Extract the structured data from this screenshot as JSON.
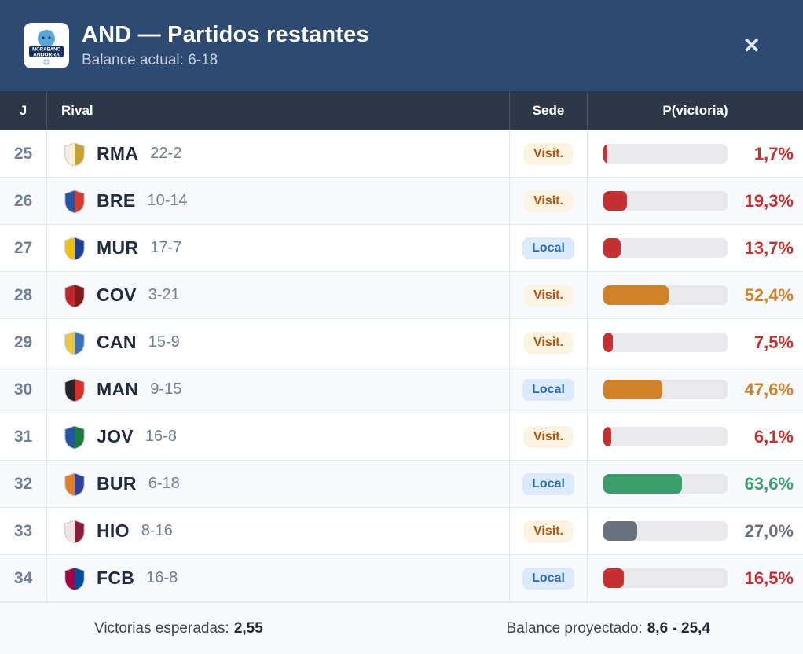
{
  "header": {
    "title": "AND — Partidos restantes",
    "subtitle": "Balance actual: 6-18",
    "close_glyph": "✕",
    "logo": {
      "name": "MoraBanc Andorra",
      "line1": "MORABANC",
      "line2": "ANDORRA"
    }
  },
  "table": {
    "columns": {
      "j": "J",
      "rival": "Rival",
      "sede": "Sede",
      "prob": "P(victoria)"
    },
    "rows": [
      {
        "j": "25",
        "abbr": "RMA",
        "record": "22-2",
        "sede": "Visit.",
        "sede_type": "visit",
        "pct": 1.7,
        "pct_label": "1,7%",
        "tone": "red",
        "logo": {
          "c1": "#f4efdd",
          "c2": "#c8a22e"
        }
      },
      {
        "j": "26",
        "abbr": "BRE",
        "record": "10-14",
        "sede": "Visit.",
        "sede_type": "visit",
        "pct": 19.3,
        "pct_label": "19,3%",
        "tone": "red",
        "logo": {
          "c1": "#2456a4",
          "c2": "#d63b2f"
        }
      },
      {
        "j": "27",
        "abbr": "MUR",
        "record": "17-7",
        "sede": "Local",
        "sede_type": "local",
        "pct": 13.7,
        "pct_label": "13,7%",
        "tone": "red",
        "logo": {
          "c1": "#f2bd05",
          "c2": "#1d3e90"
        }
      },
      {
        "j": "28",
        "abbr": "COV",
        "record": "3-21",
        "sede": "Visit.",
        "sede_type": "visit",
        "pct": 52.4,
        "pct_label": "52,4%",
        "tone": "orange",
        "logo": {
          "c1": "#c0272d",
          "c2": "#7e1a1a"
        }
      },
      {
        "j": "29",
        "abbr": "CAN",
        "record": "15-9",
        "sede": "Visit.",
        "sede_type": "visit",
        "pct": 7.5,
        "pct_label": "7,5%",
        "tone": "red",
        "logo": {
          "c1": "#e9c53f",
          "c2": "#3a72b5"
        }
      },
      {
        "j": "30",
        "abbr": "MAN",
        "record": "9-15",
        "sede": "Local",
        "sede_type": "local",
        "pct": 47.6,
        "pct_label": "47,6%",
        "tone": "orange",
        "logo": {
          "c1": "#25242f",
          "c2": "#d62f28"
        }
      },
      {
        "j": "31",
        "abbr": "JOV",
        "record": "16-8",
        "sede": "Visit.",
        "sede_type": "visit",
        "pct": 6.1,
        "pct_label": "6,1%",
        "tone": "red",
        "logo": {
          "c1": "#2456a4",
          "c2": "#1c7a3c"
        }
      },
      {
        "j": "32",
        "abbr": "BUR",
        "record": "6-18",
        "sede": "Local",
        "sede_type": "local",
        "pct": 63.6,
        "pct_label": "63,6%",
        "tone": "green",
        "logo": {
          "c1": "#e07b27",
          "c2": "#30409a"
        }
      },
      {
        "j": "33",
        "abbr": "HIO",
        "record": "8-16",
        "sede": "Visit.",
        "sede_type": "visit",
        "pct": 27.0,
        "pct_label": "27,0%",
        "tone": "gray",
        "logo": {
          "c1": "#f3e3e8",
          "c2": "#8e1b3a"
        }
      },
      {
        "j": "34",
        "abbr": "FCB",
        "record": "16-8",
        "sede": "Local",
        "sede_type": "local",
        "pct": 16.5,
        "pct_label": "16,5%",
        "tone": "red",
        "logo": {
          "c1": "#a50044",
          "c2": "#004d98"
        }
      }
    ]
  },
  "footer": {
    "left_label": "Victorias esperadas:",
    "left_value": "2,55",
    "right_label": "Balance proyectado:",
    "right_value": "8,6 - 25,4"
  },
  "colors": {
    "header_bg": "#2d4a72",
    "table_header_bg": "#2d3748",
    "row_alt": "#f7f9fc",
    "divider": "#e4e9f0",
    "track": "#e9e9eb",
    "footer_bg": "#f7f9fb",
    "text_dark": "#1f2c44",
    "text_muted": "#6e7f96",
    "badge_visit_bg": "#fdf3e2",
    "badge_visit_text": "#b5540e",
    "badge_local_bg": "#dbeafe",
    "badge_local_text": "#2b6cb0",
    "tones": {
      "red": "#c53030",
      "orange": "#cf8329",
      "green": "#3a9e6d",
      "gray": "#6b7280"
    }
  }
}
